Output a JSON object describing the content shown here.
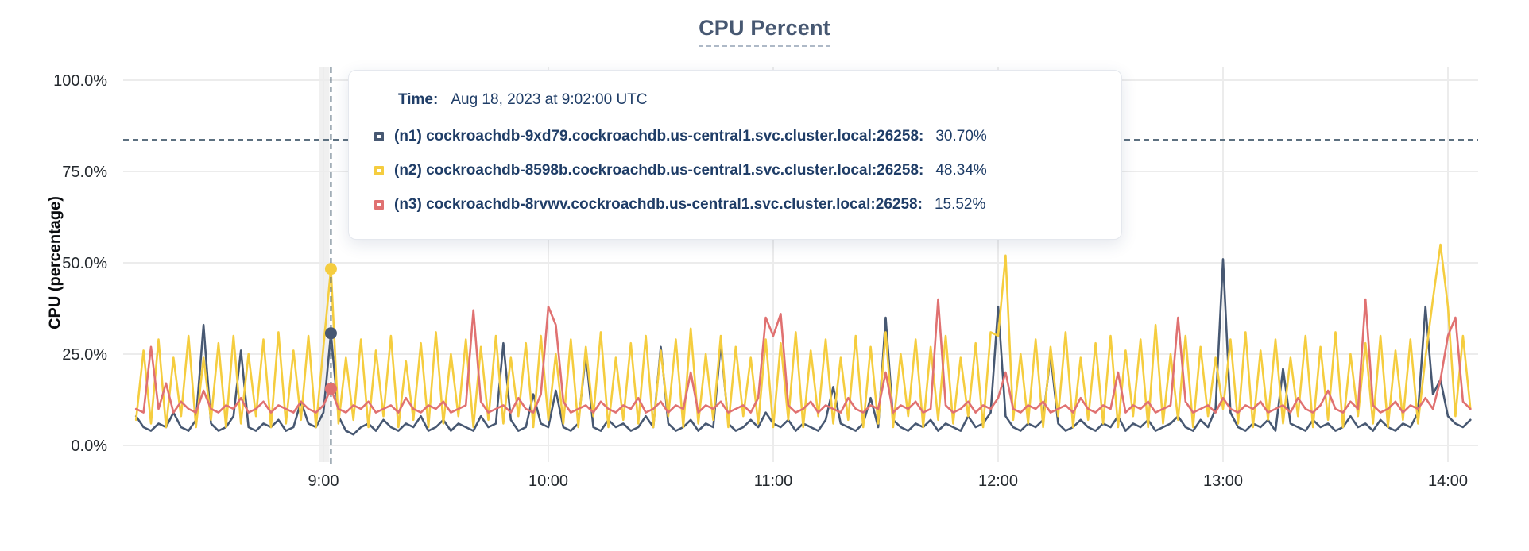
{
  "chart": {
    "title": "CPU Percent",
    "y_axis_label": "CPU (percentage)"
  },
  "tooltip": {
    "time_label": "Time:",
    "time_value": "Aug 18, 2023 at 9:02:00 UTC",
    "rows": [
      {
        "node": "(n1) cockroachdb-9xd79.cockroachdb.us-central1.svc.cluster.local:26258:",
        "value": "30.70%",
        "color": "#475872"
      },
      {
        "node": "(n2) cockroachdb-8598b.cockroachdb.us-central1.svc.cluster.local:26258:",
        "value": "48.34%",
        "color": "#f5cd3f"
      },
      {
        "node": "(n3) cockroachdb-8rvwv.cockroachdb.us-central1.svc.cluster.local:26258:",
        "value": "15.52%",
        "color": "#e07171"
      }
    ]
  },
  "chart_data": {
    "type": "line",
    "title": "CPU Percent",
    "xlabel": "",
    "ylabel": "CPU (percentage)",
    "ylim": [
      0,
      100
    ],
    "grid": true,
    "legend_position": "tooltip",
    "y_ticks": [
      {
        "value": 100,
        "label": "100.0%"
      },
      {
        "value": 75,
        "label": "75.0%"
      },
      {
        "value": 50,
        "label": "50.0%"
      },
      {
        "value": 25,
        "label": "25.0%"
      },
      {
        "value": 0,
        "label": "0.0%"
      }
    ],
    "x_ticks": [
      {
        "min": 540,
        "label": "9:00"
      },
      {
        "min": 600,
        "label": "10:00"
      },
      {
        "min": 660,
        "label": "11:00"
      },
      {
        "min": 720,
        "label": "12:00"
      },
      {
        "min": 780,
        "label": "13:00"
      },
      {
        "min": 840,
        "label": "14:00"
      }
    ],
    "x_start_min": 490,
    "x_step_min": 2,
    "hover": {
      "time_min": 542,
      "time_text": "Aug 18, 2023 at 9:02:00 UTC",
      "cursor_y_value": 83.7,
      "values": {
        "n1": 30.7,
        "n2": 48.34,
        "n3": 15.52
      }
    },
    "series": [
      {
        "id": "n1",
        "name": "(n1) cockroachdb-9xd79.cockroachdb.us-central1.svc.cluster.local:26258",
        "color": "#475872",
        "values": [
          8,
          5,
          4,
          6,
          5,
          9,
          5,
          4,
          7,
          33,
          6,
          4,
          5,
          8,
          26,
          5,
          4,
          6,
          5,
          7,
          4,
          5,
          12,
          6,
          5,
          9,
          30.7,
          8,
          4,
          3,
          5,
          6,
          4,
          7,
          5,
          4,
          6,
          5,
          8,
          4,
          5,
          7,
          4,
          6,
          5,
          4,
          8,
          5,
          6,
          28,
          7,
          4,
          5,
          14,
          6,
          5,
          15,
          5,
          4,
          6,
          25,
          5,
          4,
          7,
          5,
          6,
          4,
          5,
          8,
          5,
          27,
          6,
          4,
          5,
          7,
          4,
          6,
          5,
          28,
          6,
          4,
          5,
          7,
          5,
          9,
          6,
          5,
          7,
          4,
          6,
          5,
          4,
          7,
          16,
          6,
          5,
          4,
          6,
          13,
          5,
          35,
          7,
          5,
          4,
          6,
          5,
          7,
          4,
          6,
          5,
          4,
          8,
          5,
          6,
          9,
          38,
          8,
          5,
          4,
          6,
          5,
          7,
          25,
          6,
          4,
          5,
          7,
          5,
          4,
          6,
          5,
          8,
          4,
          6,
          5,
          7,
          4,
          5,
          6,
          8,
          5,
          4,
          7,
          5,
          10,
          51,
          9,
          5,
          4,
          6,
          5,
          7,
          4,
          21,
          6,
          5,
          4,
          7,
          5,
          6,
          4,
          5,
          8,
          5,
          6,
          4,
          7,
          5,
          4,
          6,
          5,
          9,
          38,
          14,
          18,
          8,
          6,
          5,
          7
        ]
      },
      {
        "id": "n2",
        "name": "(n2) cockroachdb-8598b.cockroachdb.us-central1.svc.cluster.local:26258",
        "color": "#f5cd3f",
        "values": [
          7,
          26,
          6,
          29,
          5,
          24,
          8,
          30,
          5,
          24,
          7,
          28,
          5,
          30,
          6,
          25,
          8,
          29,
          5,
          31,
          6,
          26,
          7,
          30,
          5,
          27,
          48.34,
          6,
          24,
          7,
          29,
          5,
          26,
          8,
          30,
          5,
          23,
          7,
          28,
          5,
          31,
          6,
          25,
          8,
          29,
          5,
          27,
          7,
          30,
          6,
          24,
          8,
          28,
          5,
          30,
          7,
          25,
          6,
          29,
          5,
          27,
          8,
          31,
          5,
          24,
          7,
          28,
          6,
          30,
          5,
          26,
          8,
          29,
          5,
          32,
          6,
          25,
          7,
          30,
          5,
          27,
          8,
          24,
          6,
          29,
          5,
          28,
          7,
          31,
          5,
          26,
          8,
          29,
          6,
          24,
          7,
          30,
          5,
          27,
          6,
          31,
          5,
          25,
          8,
          29,
          5,
          27,
          7,
          30,
          6,
          24,
          8,
          28,
          5,
          31,
          30,
          52,
          7,
          25,
          6,
          29,
          5,
          27,
          8,
          31,
          5,
          24,
          7,
          28,
          6,
          30,
          5,
          26,
          8,
          29,
          5,
          33,
          6,
          25,
          7,
          30,
          5,
          27,
          8,
          24,
          10,
          29,
          6,
          31,
          5,
          26,
          7,
          29,
          6,
          24,
          8,
          30,
          5,
          27,
          7,
          31,
          5,
          25,
          8,
          28,
          6,
          30,
          5,
          26,
          7,
          29,
          6,
          24,
          40,
          55,
          38,
          8,
          30,
          10
        ]
      },
      {
        "id": "n3",
        "name": "(n3) cockroachdb-8rvwv.cockroachdb.us-central1.svc.cluster.local:26258",
        "color": "#e07171",
        "values": [
          10,
          9,
          27,
          10,
          17,
          9,
          12,
          10,
          9,
          15,
          10,
          9,
          11,
          10,
          13,
          9,
          10,
          12,
          9,
          11,
          10,
          9,
          12,
          10,
          9,
          11,
          15.52,
          10,
          9,
          11,
          10,
          12,
          9,
          10,
          11,
          9,
          13,
          10,
          9,
          11,
          10,
          12,
          9,
          10,
          11,
          37,
          12,
          9,
          10,
          11,
          9,
          13,
          10,
          9,
          14,
          38,
          33,
          12,
          9,
          10,
          11,
          9,
          12,
          10,
          9,
          11,
          10,
          13,
          9,
          10,
          12,
          9,
          11,
          10,
          20,
          9,
          11,
          10,
          12,
          9,
          10,
          11,
          9,
          13,
          35,
          30,
          36,
          11,
          9,
          10,
          12,
          9,
          11,
          10,
          9,
          13,
          10,
          9,
          11,
          10,
          20,
          9,
          11,
          10,
          12,
          9,
          10,
          40,
          11,
          9,
          10,
          12,
          9,
          11,
          10,
          13,
          20,
          10,
          9,
          11,
          10,
          12,
          9,
          10,
          11,
          9,
          13,
          10,
          9,
          11,
          10,
          20,
          9,
          11,
          10,
          12,
          9,
          10,
          11,
          35,
          12,
          9,
          10,
          11,
          9,
          13,
          10,
          9,
          11,
          10,
          12,
          9,
          10,
          11,
          9,
          13,
          10,
          9,
          11,
          15,
          10,
          9,
          12,
          10,
          40,
          11,
          9,
          10,
          12,
          9,
          11,
          10,
          13,
          10,
          18,
          30,
          35,
          12,
          10
        ]
      }
    ]
  }
}
